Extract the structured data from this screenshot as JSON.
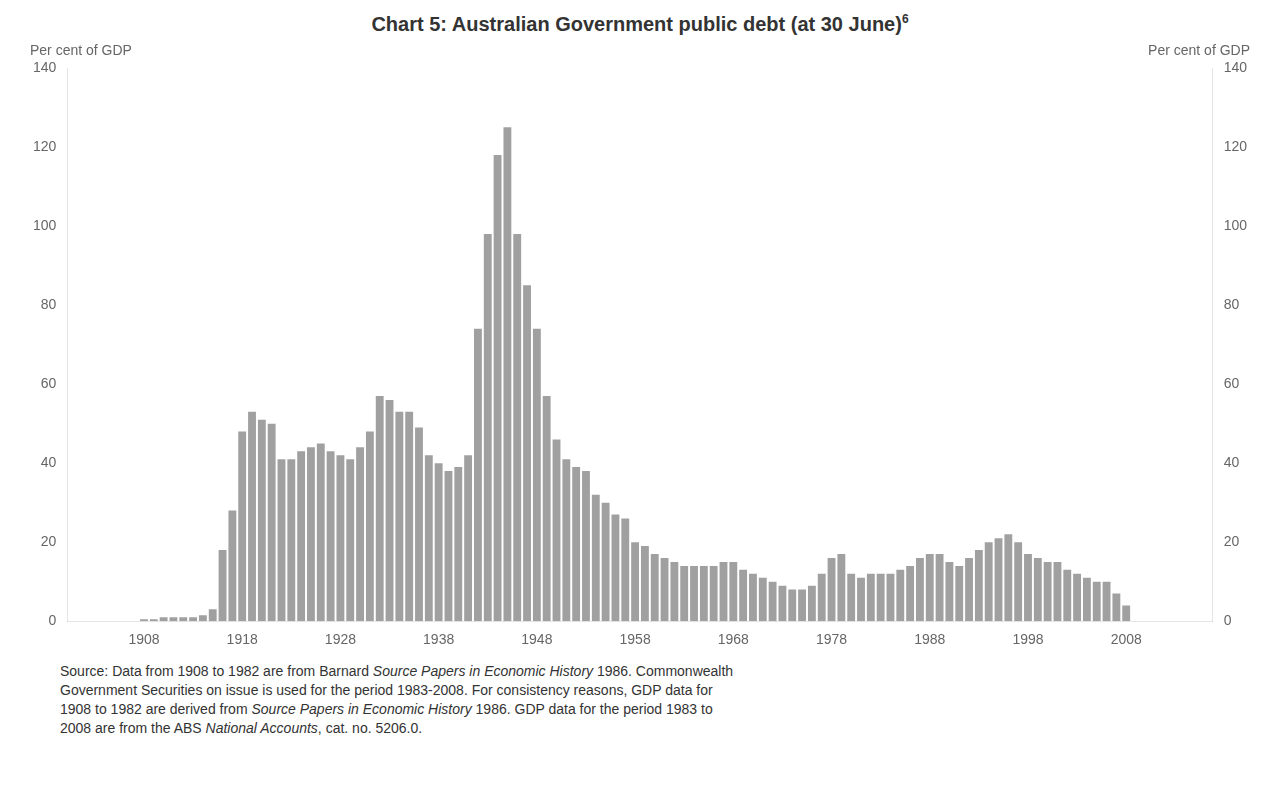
{
  "chart_data": {
    "type": "bar",
    "title": "Chart 5: Australian Government public debt (at 30 June)",
    "title_superscript": "6",
    "ylabel": "Per cent of GDP",
    "y2label": "Per cent of GDP",
    "color": "#a0a0a0",
    "x": [
      1908,
      1909,
      1910,
      1911,
      1912,
      1913,
      1914,
      1915,
      1916,
      1917,
      1918,
      1919,
      1920,
      1921,
      1922,
      1923,
      1924,
      1925,
      1926,
      1927,
      1928,
      1929,
      1930,
      1931,
      1932,
      1933,
      1934,
      1935,
      1936,
      1937,
      1938,
      1939,
      1940,
      1941,
      1942,
      1943,
      1944,
      1945,
      1946,
      1947,
      1948,
      1949,
      1950,
      1951,
      1952,
      1953,
      1954,
      1955,
      1956,
      1957,
      1958,
      1959,
      1960,
      1961,
      1962,
      1963,
      1964,
      1965,
      1966,
      1967,
      1968,
      1969,
      1970,
      1971,
      1972,
      1973,
      1974,
      1975,
      1976,
      1977,
      1978,
      1979,
      1980,
      1981,
      1982,
      1983,
      1984,
      1985,
      1986,
      1987,
      1988,
      1989,
      1990,
      1991,
      1992,
      1993,
      1994,
      1995,
      1996,
      1997,
      1998,
      1999,
      2000,
      2001,
      2002,
      2003,
      2004,
      2005,
      2006,
      2007,
      2008
    ],
    "values": [
      0.5,
      0.5,
      1.0,
      1.0,
      1.0,
      1.0,
      1.5,
      3.0,
      18.0,
      28.0,
      48.0,
      53.0,
      51.0,
      50.0,
      41.0,
      41.0,
      43.0,
      44.0,
      45.0,
      43.0,
      42.0,
      41.0,
      44.0,
      48.0,
      57.0,
      56.0,
      53.0,
      53.0,
      49.0,
      42.0,
      40.0,
      38.0,
      39.0,
      42.0,
      74.0,
      98.0,
      118.0,
      125.0,
      98.0,
      85.0,
      74.0,
      57.0,
      46.0,
      41.0,
      39.0,
      38.0,
      32.0,
      30.0,
      27.0,
      26.0,
      20.0,
      19.0,
      17.0,
      16.0,
      15.0,
      14.0,
      14.0,
      14.0,
      14.0,
      15.0,
      15.0,
      13.0,
      12.0,
      11.0,
      10.0,
      9.0,
      8.0,
      8.0,
      9.0,
      12.0,
      16.0,
      17.0,
      12.0,
      11.0,
      12.0,
      12.0,
      12.0,
      13.0,
      14.0,
      16.0,
      17.0,
      17.0,
      15.0,
      14.0,
      16.0,
      18.0,
      20.0,
      21.0,
      22.0,
      20.0,
      17.0,
      16.0,
      15.0,
      15.0,
      13.0,
      12.0,
      11.0,
      10.0,
      10.0,
      7.0,
      4.0
    ],
    "xlim": [
      1905.5,
      2011.5
    ],
    "xticks": [
      1908,
      1918,
      1928,
      1938,
      1948,
      1958,
      1968,
      1978,
      1988,
      1998,
      2008
    ],
    "ylim": [
      0,
      140
    ],
    "yticks": [
      0,
      20,
      40,
      60,
      80,
      100,
      120,
      140
    ],
    "y2lim": [
      0,
      140
    ],
    "y2ticks": [
      0,
      20,
      40,
      60,
      80,
      100,
      120,
      140
    ],
    "grid": false,
    "legend": false,
    "source": [
      [
        {
          "text": "Source: Data from 1908 to 1982 are from Barnard ",
          "italic": false
        },
        {
          "text": "Source Papers in Economic History",
          "italic": true
        },
        {
          "text": " 1986. Commonwealth",
          "italic": false
        }
      ],
      [
        {
          "text": "Government Securities on issue is used for the period 1983-2008. For consistency reasons, GDP data for",
          "italic": false
        }
      ],
      [
        {
          "text": "1908 to 1982 are derived from ",
          "italic": false
        },
        {
          "text": "Source Papers in Economic History",
          "italic": true
        },
        {
          "text": " 1986. GDP data for the period 1983 to",
          "italic": false
        }
      ],
      [
        {
          "text": "2008 are from the ABS ",
          "italic": false
        },
        {
          "text": "National Accounts",
          "italic": true
        },
        {
          "text": ", cat. no. 5206.0.",
          "italic": false
        }
      ]
    ]
  }
}
